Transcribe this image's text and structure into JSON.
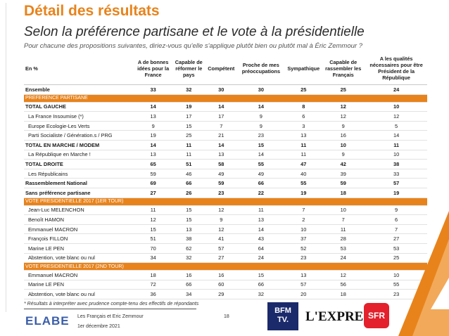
{
  "title": "Détail des résultats",
  "subtitle": "Selon la préférence partisane et le vote à la présidentielle",
  "intro": "Pour chacune des propositions suivantes, diriez-vous qu'elle s'applique plutôt bien ou plutôt mal à Éric Zemmour ?",
  "table": {
    "header_first": "En %",
    "columns": [
      "A de bonnes idées pour la France",
      "Capable de réformer le pays",
      "Compétent",
      "Proche de mes préoccupations",
      "Sympathique",
      "Capable de rassembler les Français",
      "A les qualités nécessaires pour être Président de la République"
    ],
    "rows": [
      {
        "kind": "total",
        "label": "Ensemble",
        "values": [
          "33",
          "32",
          "30",
          "30",
          "25",
          "25",
          "24"
        ]
      },
      {
        "kind": "section",
        "label": "PREFERENCE PARTISANE"
      },
      {
        "kind": "bold",
        "label": "TOTAL GAUCHE",
        "values": [
          "14",
          "19",
          "14",
          "14",
          "8",
          "12",
          "10"
        ]
      },
      {
        "kind": "sub",
        "label": "La France Insoumise (*)",
        "values": [
          "13",
          "17",
          "17",
          "9",
          "6",
          "12",
          "12"
        ]
      },
      {
        "kind": "sub",
        "label": "Europe Ecologie-Les Verts",
        "values": [
          "9",
          "15",
          "7",
          "9",
          "3",
          "9",
          "5"
        ]
      },
      {
        "kind": "sub",
        "label": "Parti Socialiste / Génération.s / PRG",
        "values": [
          "19",
          "25",
          "21",
          "23",
          "13",
          "16",
          "14"
        ]
      },
      {
        "kind": "bold",
        "label": "TOTAL EN MARCHE / MODEM",
        "values": [
          "14",
          "11",
          "14",
          "15",
          "11",
          "10",
          "11"
        ]
      },
      {
        "kind": "sub",
        "label": "La République en Marche !",
        "values": [
          "13",
          "11",
          "13",
          "14",
          "11",
          "9",
          "10"
        ]
      },
      {
        "kind": "bold",
        "label": "TOTAL DROITE",
        "values": [
          "65",
          "51",
          "58",
          "55",
          "47",
          "42",
          "38"
        ]
      },
      {
        "kind": "sub",
        "label": "Les Républicains",
        "values": [
          "59",
          "46",
          "49",
          "49",
          "40",
          "39",
          "33"
        ]
      },
      {
        "kind": "bold",
        "label": "Rassemblement National",
        "values": [
          "69",
          "66",
          "59",
          "66",
          "55",
          "59",
          "57"
        ]
      },
      {
        "kind": "bold",
        "label": "Sans préférence partisane",
        "values": [
          "27",
          "26",
          "23",
          "22",
          "19",
          "18",
          "19"
        ]
      },
      {
        "kind": "section",
        "label": "VOTE PRESIDENTIELLE 2017 (1ER TOUR)"
      },
      {
        "kind": "sub",
        "label": "Jean-Luc MELENCHON",
        "values": [
          "11",
          "15",
          "12",
          "11",
          "7",
          "10",
          "9"
        ]
      },
      {
        "kind": "sub",
        "label": "Benoît HAMON",
        "values": [
          "12",
          "15",
          "9",
          "13",
          "2",
          "7",
          "6"
        ]
      },
      {
        "kind": "sub",
        "label": "Emmanuel MACRON",
        "values": [
          "15",
          "13",
          "12",
          "14",
          "10",
          "11",
          "7"
        ]
      },
      {
        "kind": "sub",
        "label": "François FILLON",
        "values": [
          "51",
          "38",
          "41",
          "43",
          "37",
          "28",
          "27"
        ]
      },
      {
        "kind": "sub",
        "label": "Marine LE PEN",
        "values": [
          "70",
          "62",
          "57",
          "64",
          "52",
          "53",
          "53"
        ]
      },
      {
        "kind": "sub",
        "label": "Abstention, vote blanc ou nul",
        "values": [
          "34",
          "32",
          "27",
          "24",
          "23",
          "24",
          "25"
        ]
      },
      {
        "kind": "section",
        "label": "VOTE PRESIDENTIELLE 2017 (2ND TOUR)"
      },
      {
        "kind": "sub",
        "label": "Emmanuel MACRON",
        "values": [
          "18",
          "16",
          "16",
          "15",
          "13",
          "12",
          "10"
        ]
      },
      {
        "kind": "sub",
        "label": "Marine LE PEN",
        "values": [
          "72",
          "66",
          "60",
          "66",
          "57",
          "56",
          "55"
        ]
      },
      {
        "kind": "sub",
        "label": "Abstention, vote blanc ou nul",
        "values": [
          "36",
          "34",
          "29",
          "32",
          "20",
          "18",
          "23"
        ]
      }
    ]
  },
  "footnote": "* Résultats à interpréter avec prudence compte-tenu des effectifs de répondants",
  "footer": {
    "brand": "ELABE",
    "study": "Les Français et Eric Zemmour",
    "date": "1er décembre 2021",
    "page": "18",
    "logo_bfm_line1": "BFM",
    "logo_bfm_line2": "TV.",
    "logo_express": "L'EXPRESS",
    "logo_sfr": "SFR"
  },
  "colors": {
    "accent": "#e8831b",
    "brand_blue": "#3b5ea8",
    "sfr_red": "#e3202b",
    "bfm_navy": "#1b2a6b"
  }
}
